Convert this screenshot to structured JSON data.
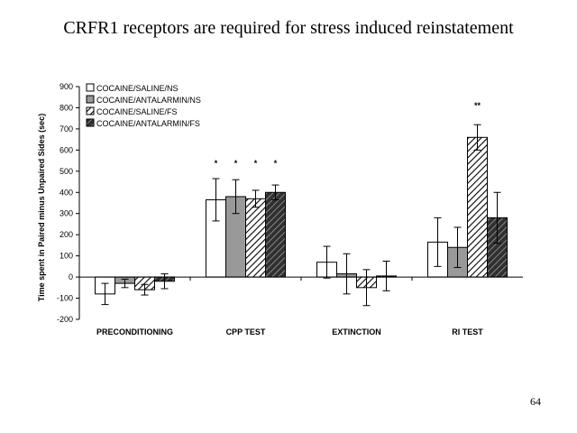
{
  "slide": {
    "title": "CRFR1 receptors are required for stress induced reinstatement",
    "page_number": "64"
  },
  "chart_data": {
    "type": "bar",
    "title": "CRFR1 receptors are required for stress induced reinstatement",
    "ylabel": "Time spent in Paired minus Unpaired Sides (sec)",
    "xlabel": "",
    "ylim": [
      -200,
      900
    ],
    "yticks": [
      -200,
      -100,
      0,
      100,
      200,
      300,
      400,
      500,
      600,
      700,
      800,
      900
    ],
    "categories": [
      "PRECONDITIONING",
      "CPP TEST",
      "EXTINCTION",
      "RI TEST"
    ],
    "series": [
      {
        "name": "COCAINE/SALINE/NS",
        "values": [
          -80,
          365,
          70,
          165
        ],
        "errors": [
          50,
          100,
          75,
          115
        ],
        "color": "#ffffff",
        "pattern": "solid-white"
      },
      {
        "name": "COCAINE/ANTALARMIN/NS",
        "values": [
          -30,
          380,
          15,
          140
        ],
        "errors": [
          20,
          80,
          95,
          95
        ],
        "color": "#999999",
        "pattern": "solid-gray"
      },
      {
        "name": "COCAINE/SALINE/FS",
        "values": [
          -60,
          370,
          -50,
          660
        ],
        "errors": [
          25,
          40,
          85,
          60
        ],
        "color": "#ffffff",
        "pattern": "hatch-light"
      },
      {
        "name": "COCAINE/ANTALARMIN/FS",
        "values": [
          -20,
          400,
          5,
          280
        ],
        "errors": [
          35,
          35,
          70,
          120
        ],
        "color": "#404040",
        "pattern": "hatch-dark"
      }
    ],
    "significance": [
      {
        "category": 1,
        "series": 0,
        "label": "*"
      },
      {
        "category": 1,
        "series": 1,
        "label": "*"
      },
      {
        "category": 1,
        "series": 2,
        "label": "*"
      },
      {
        "category": 1,
        "series": 3,
        "label": "*"
      },
      {
        "category": 3,
        "series": 2,
        "label": "**"
      }
    ],
    "legend": "top-left",
    "grid": false
  }
}
